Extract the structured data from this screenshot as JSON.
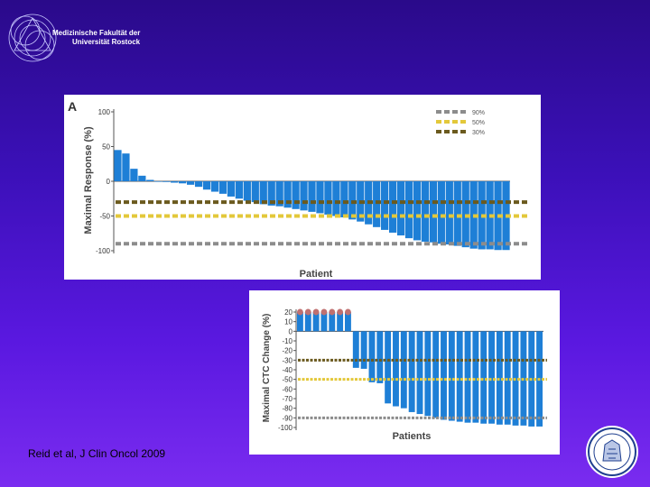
{
  "header": {
    "faculty_line1": "Medizinische Fakultät der",
    "faculty_line2": "Universität Rostock"
  },
  "citation": "Reid et al, J Clin Oncol 2009",
  "colors": {
    "bar": "#1e7fd6",
    "line90": "#8c8c8c",
    "line50": "#e3c83a",
    "line30": "#6b5a1e",
    "capped": "#c07070"
  },
  "chart_data": [
    {
      "type": "bar",
      "title": "A",
      "xlabel": "Patient",
      "ylabel": "Maximal Response (%)",
      "ylim": [
        -100,
        100
      ],
      "yticks": [
        100,
        50,
        0,
        -50,
        -100
      ],
      "legend": {
        "position": "top-right",
        "entries": [
          "90%",
          "50%",
          "30%"
        ]
      },
      "reference_lines": [
        {
          "name": "90%",
          "value": -90,
          "color": "#8c8c8c"
        },
        {
          "name": "50%",
          "value": -50,
          "color": "#e3c83a"
        },
        {
          "name": "30%",
          "value": -30,
          "color": "#6b5a1e"
        }
      ],
      "values": [
        45,
        40,
        18,
        8,
        2,
        0,
        -1,
        -2,
        -3,
        -5,
        -8,
        -12,
        -15,
        -18,
        -22,
        -25,
        -28,
        -30,
        -33,
        -35,
        -36,
        -38,
        -40,
        -42,
        -44,
        -46,
        -48,
        -50,
        -52,
        -55,
        -58,
        -62,
        -66,
        -70,
        -74,
        -78,
        -82,
        -85,
        -87,
        -88,
        -90,
        -91,
        -93,
        -95,
        -97,
        -98,
        -98,
        -99,
        -99
      ]
    },
    {
      "type": "bar",
      "title": "",
      "xlabel": "Patients",
      "ylabel": "Maximal CTC Change (%)",
      "ylim": [
        -100,
        20
      ],
      "yticks": [
        20,
        10,
        0,
        -10,
        -20,
        -30,
        -40,
        -50,
        -60,
        -70,
        -80,
        -90,
        -100
      ],
      "reference_lines": [
        {
          "name": "30%",
          "value": -30,
          "color": "#6b5a1e"
        },
        {
          "name": "50%",
          "value": -50,
          "color": "#e3c83a"
        },
        {
          "name": "90%",
          "value": -90,
          "color": "#8c8c8c"
        }
      ],
      "values": [
        20,
        20,
        20,
        20,
        20,
        20,
        20,
        -38,
        -39,
        -53,
        -54,
        -75,
        -78,
        -80,
        -84,
        -86,
        -88,
        -90,
        -92,
        -93,
        -94,
        -95,
        -95,
        -96,
        -96,
        -97,
        -97,
        -98,
        -98,
        -99,
        -99
      ]
    }
  ]
}
